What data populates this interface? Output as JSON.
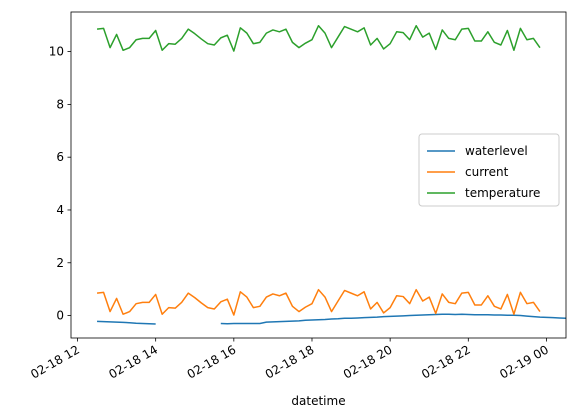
{
  "chart_data": {
    "type": "line",
    "xlabel": "datetime",
    "ylabel": "",
    "xlim": [
      "2018-02-18 11:50",
      "2018-02-19 00:30"
    ],
    "ylim": [
      -0.85,
      11.5
    ],
    "yticks": [
      0,
      2,
      4,
      6,
      8,
      10
    ],
    "xticks": [
      {
        "value": "2018-02-18 12:00",
        "label": "02-18 12"
      },
      {
        "value": "2018-02-18 14:00",
        "label": "02-18 14"
      },
      {
        "value": "2018-02-18 16:00",
        "label": "02-18 16"
      },
      {
        "value": "2018-02-18 18:00",
        "label": "02-18 18"
      },
      {
        "value": "2018-02-18 20:00",
        "label": "02-18 20"
      },
      {
        "value": "2018-02-18 22:00",
        "label": "02-18 22"
      },
      {
        "value": "2018-02-19 00:00",
        "label": "02-19 00"
      }
    ],
    "grid": false,
    "legend": "center-right",
    "x_start": "2018-02-18 12:30",
    "x_step_minutes": 10,
    "series": [
      {
        "name": "waterlevel",
        "color": "#1f77b4",
        "values": [
          -0.22,
          -0.23,
          -0.24,
          -0.25,
          -0.26,
          -0.27,
          -0.29,
          -0.3,
          -0.31,
          -0.32,
          null,
          null,
          null,
          null,
          null,
          null,
          null,
          null,
          null,
          -0.3,
          -0.31,
          -0.3,
          -0.3,
          -0.3,
          -0.3,
          -0.3,
          -0.25,
          -0.24,
          -0.23,
          -0.22,
          -0.21,
          -0.2,
          -0.18,
          -0.17,
          -0.16,
          -0.15,
          -0.13,
          -0.12,
          -0.1,
          -0.1,
          -0.09,
          -0.08,
          -0.07,
          -0.06,
          -0.04,
          -0.03,
          -0.02,
          -0.01,
          0.0,
          0.01,
          0.02,
          0.03,
          0.04,
          0.05,
          0.05,
          0.04,
          0.05,
          0.04,
          0.03,
          0.03,
          0.03,
          0.02,
          0.02,
          0.01,
          0.01,
          0.0,
          -0.02,
          -0.04,
          -0.06,
          -0.07,
          -0.08,
          -0.09,
          -0.1
        ]
      },
      {
        "name": "current",
        "color": "#ff7f0e",
        "values": [
          0.85,
          0.88,
          0.15,
          0.65,
          0.05,
          0.15,
          0.45,
          0.5,
          0.5,
          0.8,
          0.05,
          0.3,
          0.28,
          0.5,
          0.85,
          0.68,
          0.48,
          0.3,
          0.25,
          0.52,
          0.62,
          0.02,
          0.9,
          0.7,
          0.3,
          0.35,
          0.7,
          0.82,
          0.75,
          0.85,
          0.35,
          0.15,
          0.32,
          0.45,
          0.98,
          0.7,
          0.15,
          0.55,
          0.95,
          0.85,
          0.75,
          0.9,
          0.25,
          0.5,
          0.1,
          0.3,
          0.75,
          0.72,
          0.45,
          0.98,
          0.55,
          0.7,
          0.08,
          0.82,
          0.5,
          0.45,
          0.85,
          0.88,
          0.4,
          0.4,
          0.75,
          0.35,
          0.25,
          0.8,
          0.05,
          0.88,
          0.45,
          0.5,
          0.15
        ]
      },
      {
        "name": "temperature",
        "color": "#2ca02c",
        "values": [
          10.85,
          10.88,
          10.15,
          10.65,
          10.05,
          10.15,
          10.45,
          10.5,
          10.5,
          10.8,
          10.05,
          10.3,
          10.28,
          10.5,
          10.85,
          10.68,
          10.48,
          10.3,
          10.25,
          10.52,
          10.62,
          10.02,
          10.9,
          10.7,
          10.3,
          10.35,
          10.7,
          10.82,
          10.75,
          10.85,
          10.35,
          10.15,
          10.32,
          10.45,
          10.98,
          10.7,
          10.15,
          10.55,
          10.95,
          10.85,
          10.75,
          10.9,
          10.25,
          10.5,
          10.1,
          10.3,
          10.75,
          10.72,
          10.45,
          10.98,
          10.55,
          10.7,
          10.08,
          10.82,
          10.5,
          10.45,
          10.85,
          10.88,
          10.4,
          10.4,
          10.75,
          10.35,
          10.25,
          10.8,
          10.05,
          10.88,
          10.45,
          10.5,
          10.15
        ]
      }
    ]
  }
}
